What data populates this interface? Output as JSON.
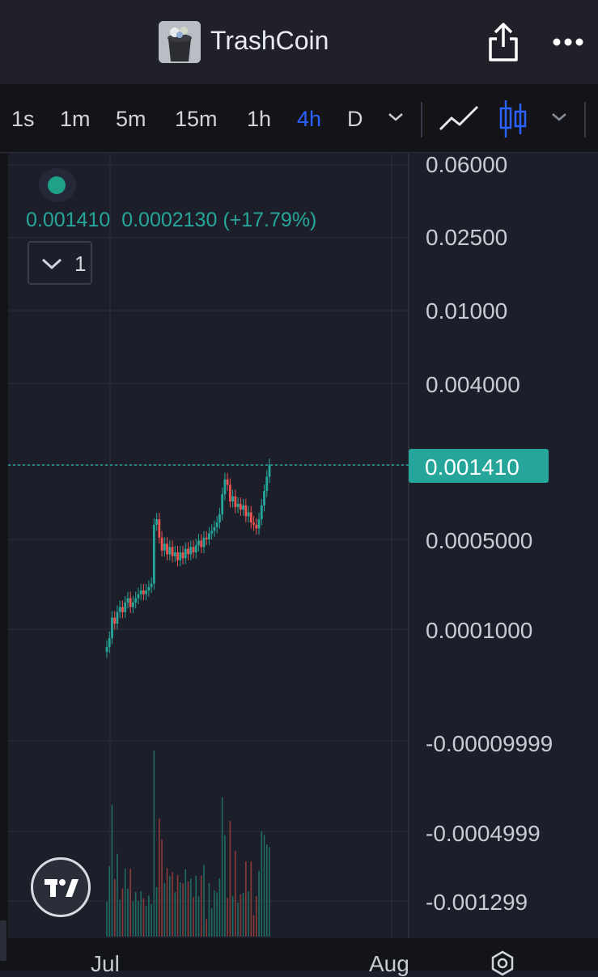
{
  "header": {
    "title": "TrashCoin"
  },
  "toolbar": {
    "intervals": [
      "1s",
      "1m",
      "5m",
      "15m",
      "1h",
      "4h",
      "D"
    ],
    "active_interval": "4h",
    "chart_styles": [
      "line-chart-icon",
      "candles-icon"
    ],
    "active_style": "candles-icon"
  },
  "legend": {
    "price": "0.001410",
    "change": "0.0002130",
    "change_pct": "(+17.79%)",
    "collapse_count": "1"
  },
  "price_axis": {
    "labels": [
      "0.06000",
      "0.02500",
      "0.01000",
      "0.004000",
      "0.0005000",
      "0.0001000",
      "-0.00009999",
      "-0.0004999",
      "-0.001299"
    ],
    "current_price": "0.001410"
  },
  "time_axis": {
    "labels": [
      "Jul",
      "Aug"
    ]
  },
  "colors": {
    "up": "#26a69a",
    "down": "#ef5350",
    "active": "#2962ff"
  },
  "chart_data": {
    "type": "candlestick",
    "scale": "log",
    "series": [
      {
        "name": "price",
        "close": [
          6e-05,
          7e-05,
          0.0001,
          9e-05,
          0.00011,
          0.00012,
          0.00011,
          0.00013,
          0.00014,
          0.00012,
          0.00013,
          0.00014,
          0.00015,
          0.00016,
          0.00015,
          0.00016,
          0.00017,
          0.00018,
          0.0005,
          0.00055,
          0.0004,
          0.00032,
          0.00036,
          0.0003,
          0.00034,
          0.00029,
          0.00031,
          0.00027,
          0.00031,
          0.00028,
          0.00033,
          0.0003,
          0.00034,
          0.00031,
          0.00035,
          0.00038,
          0.00034,
          0.0004,
          0.00039,
          0.00043,
          0.00045,
          0.00048,
          0.00052,
          0.0006,
          0.00085,
          0.0011,
          0.001,
          0.00075,
          0.00082,
          0.00068,
          0.00072,
          0.00065,
          0.0007,
          0.00058,
          0.00062,
          0.00052,
          0.0005,
          0.00047,
          0.00055,
          0.0007,
          0.0009,
          0.00115,
          0.00141
        ]
      }
    ],
    "current_price": 0.00141,
    "change": 0.000213,
    "change_pct": 17.79,
    "x_labels": [
      "Jul",
      "Aug"
    ]
  }
}
